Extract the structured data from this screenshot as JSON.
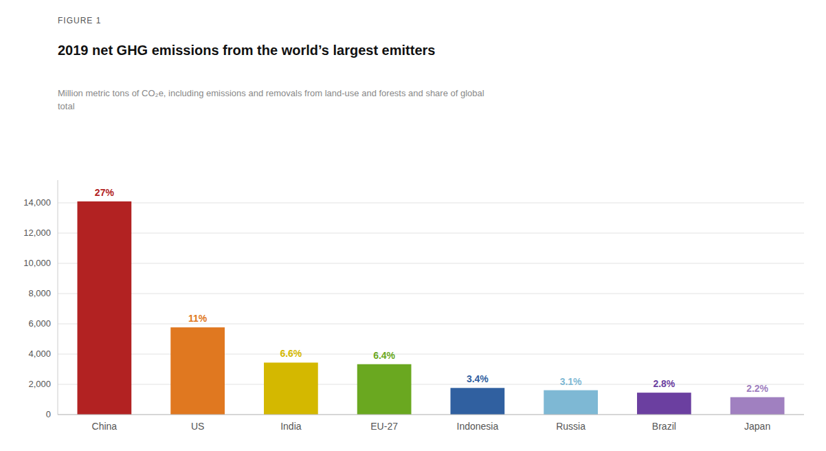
{
  "chart_data": {
    "type": "bar",
    "annotations": [
      "FIGURE 1"
    ],
    "title": "2019 net GHG emissions from the world’s largest emitters",
    "subtitle": "Million metric tons of CO₂e, including emissions and removals from land-use and forests and share of global\ntotal",
    "categories": [
      "China",
      "US",
      "India",
      "EU-27",
      "Indonesia",
      "Russia",
      "Brazil",
      "Japan"
    ],
    "values": [
      14093,
      5765,
      3435,
      3330,
      1760,
      1610,
      1448,
      1150
    ],
    "share_labels": [
      "27%",
      "11%",
      "6.6%",
      "6.4%",
      "3.4%",
      "3.1%",
      "2.8%",
      "2.2%"
    ],
    "colors": [
      "#b22222",
      "#e07820",
      "#d4b800",
      "#6aa820",
      "#3060a0",
      "#7eb8d4",
      "#6b3fa0",
      "#a080c0"
    ],
    "ylim": [
      0,
      15500
    ],
    "yticks": [
      0,
      {
        "value": 2000,
        "label": "2,000"
      },
      {
        "value": 4000,
        "label": "4,000"
      },
      {
        "value": 6000,
        "label": "6,000"
      },
      {
        "value": 8000,
        "label": "8,000"
      },
      {
        "value": 10000,
        "label": "10,000"
      },
      {
        "value": 12000,
        "label": "12,000"
      },
      {
        "value": 14000,
        "label": "14,000"
      }
    ],
    "grid": true
  }
}
